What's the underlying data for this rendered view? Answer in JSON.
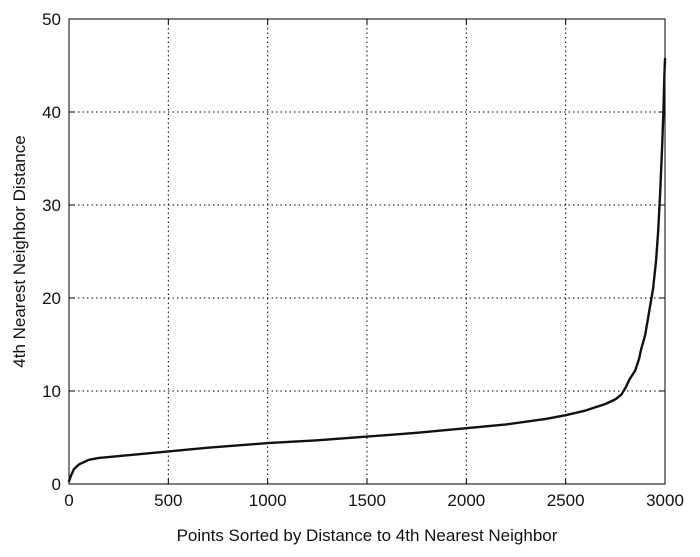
{
  "chart_data": {
    "type": "line",
    "title": "",
    "xlabel": "Points Sorted by Distance to 4th Nearest Neighbor",
    "ylabel": "4th Nearest Neighbor Distance",
    "xlim": [
      0,
      3000
    ],
    "ylim": [
      0,
      50
    ],
    "xticks": [
      0,
      500,
      1000,
      1500,
      2000,
      2500,
      3000
    ],
    "yticks": [
      0,
      10,
      20,
      30,
      40,
      50
    ],
    "grid": true,
    "legend": "none",
    "line_color": "#111111",
    "series": [
      {
        "x": [
          0,
          10,
          25,
          50,
          100,
          150,
          200,
          300,
          500,
          700,
          1000,
          1250,
          1500,
          1750,
          2000,
          2200,
          2400,
          2500,
          2600,
          2700,
          2750,
          2780,
          2800,
          2820,
          2850,
          2870,
          2880,
          2900,
          2920,
          2940,
          2955,
          2965,
          2975,
          2985,
          2992,
          2997,
          3000
        ],
        "y": [
          0.3,
          0.9,
          1.6,
          2.1,
          2.6,
          2.8,
          2.9,
          3.1,
          3.5,
          3.9,
          4.4,
          4.7,
          5.1,
          5.5,
          6.0,
          6.4,
          7.0,
          7.4,
          7.9,
          8.6,
          9.1,
          9.6,
          10.3,
          11.2,
          12.2,
          13.5,
          14.5,
          16.0,
          18.5,
          21.0,
          24.0,
          27.0,
          31.0,
          36.0,
          40.0,
          44.0,
          45.7
        ]
      }
    ]
  }
}
